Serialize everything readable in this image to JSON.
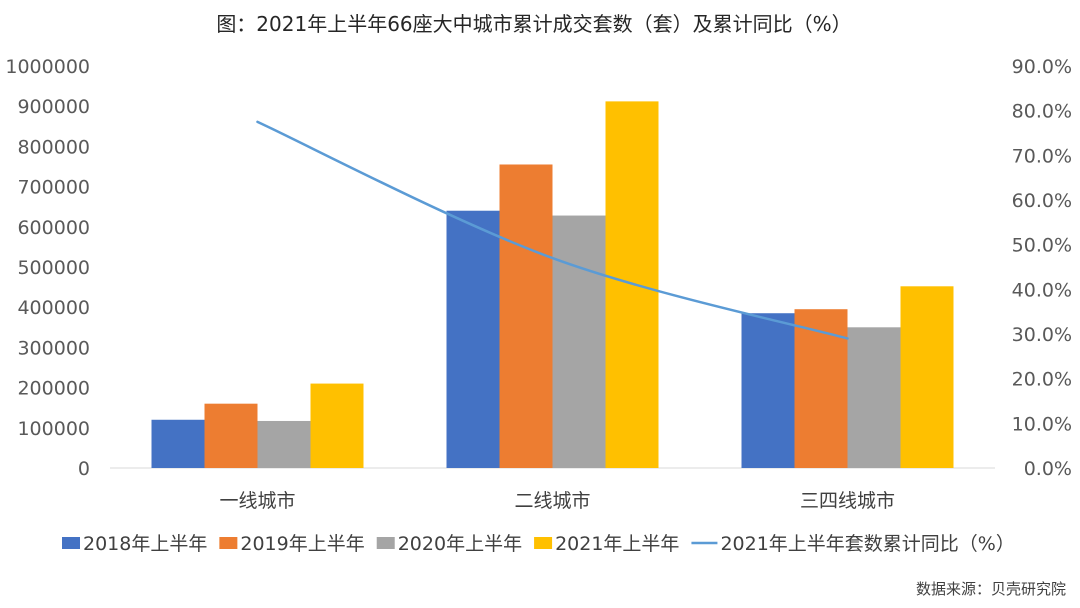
{
  "chart_data": {
    "type": "bar",
    "title": "图：2021年上半年66座大中城市累计成交套数（套）及累计同比（%）",
    "categories": [
      "一线城市",
      "二线城市",
      "三四线城市"
    ],
    "series": [
      {
        "name": "2018年上半年",
        "color": "#4472C4",
        "values": [
          120000,
          640000,
          385000
        ]
      },
      {
        "name": "2019年上半年",
        "color": "#ED7D31",
        "values": [
          160000,
          755000,
          395000
        ]
      },
      {
        "name": "2020年上半年",
        "color": "#A5A5A5",
        "values": [
          117000,
          628000,
          350000
        ]
      },
      {
        "name": "2021年上半年",
        "color": "#FFC000",
        "values": [
          210000,
          912000,
          452000
        ]
      }
    ],
    "line_series": {
      "name": "2021年上半年套数累计同比（%）",
      "color": "#5B9BD5",
      "values": [
        77.5,
        47.0,
        29.0
      ],
      "axis": "right"
    },
    "y_left": {
      "min": 0,
      "max": 1000000,
      "ticks": [
        "0",
        "100000",
        "200000",
        "300000",
        "400000",
        "500000",
        "600000",
        "700000",
        "800000",
        "900000",
        "1000000"
      ]
    },
    "y_right": {
      "min": 0,
      "max": 90,
      "ticks": [
        "0.0%",
        "10.0%",
        "20.0%",
        "30.0%",
        "40.0%",
        "50.0%",
        "60.0%",
        "70.0%",
        "80.0%",
        "90.0%"
      ]
    },
    "grid": false,
    "legend": "bottom",
    "source": "数据来源：贝壳研究院"
  }
}
